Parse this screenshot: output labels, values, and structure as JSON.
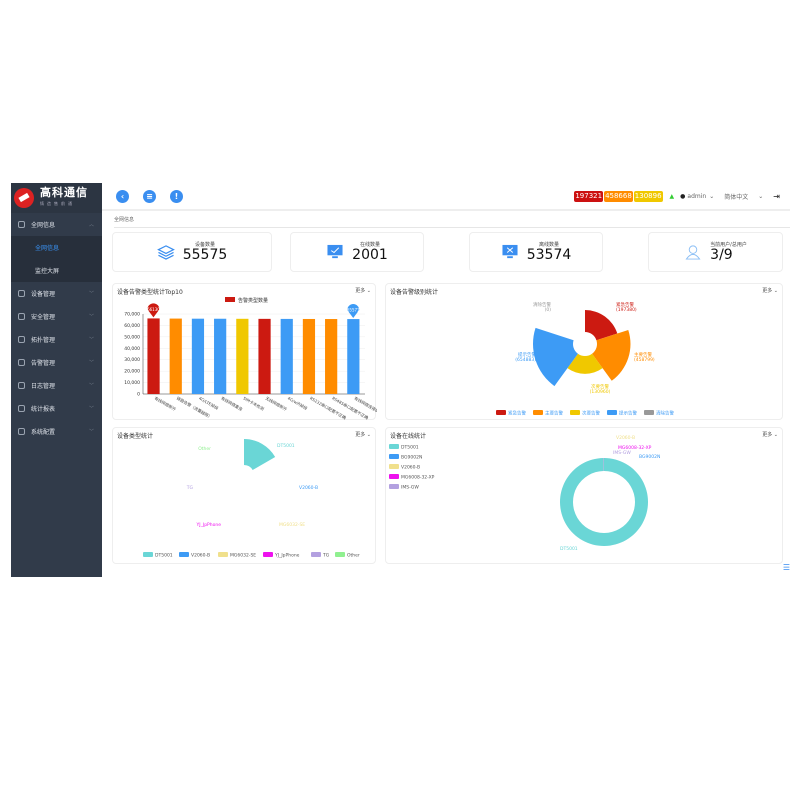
{
  "brand": {
    "name": "高科通信",
    "sub": "铸造售前通"
  },
  "sidebar": {
    "items": [
      {
        "label": "全网信息",
        "expanded": true,
        "children": [
          {
            "label": "全网信息",
            "active": true
          },
          {
            "label": "监控大屏"
          }
        ]
      },
      {
        "label": "设备管理"
      },
      {
        "label": "安全管理"
      },
      {
        "label": "拓扑管理"
      },
      {
        "label": "告警管理"
      },
      {
        "label": "日志管理"
      },
      {
        "label": "统计报表"
      },
      {
        "label": "系统配置"
      }
    ]
  },
  "topbar": {
    "icons": [
      "back-icon",
      "list-icon",
      "alert-icon"
    ],
    "badges": [
      {
        "value": "197321",
        "color": "#cc1111"
      },
      {
        "value": "458668",
        "color": "#ff8c00"
      },
      {
        "value": "130896",
        "color": "#f0c800"
      }
    ],
    "user": "admin",
    "language": "简体中文"
  },
  "breadcrumb": "全网信息",
  "stats": [
    {
      "label": "设备数量",
      "value": "55575",
      "icon": "layers-icon"
    },
    {
      "label": "在线数量",
      "value": "2001",
      "icon": "monitor-check-icon"
    },
    {
      "label": "离线数量",
      "value": "53574",
      "icon": "monitor-x-icon"
    },
    {
      "label": "当前用户/总用户",
      "value": "3/9",
      "icon": "user-icon"
    }
  ],
  "more_label": "更多",
  "chart_data": [
    {
      "type": "bar",
      "title": "设备告警类型统计Top10",
      "legend": [
        "告警类型数量"
      ],
      "ylim": [
        0,
        70000
      ],
      "yticks": [
        "0",
        "10,000",
        "20,000",
        "30,000",
        "40,000",
        "50,000",
        "60,000",
        "70,000"
      ],
      "categories": [
        "有线网络断开",
        "链路告警（流量越限）",
        "4G/LTE掉线",
        "有线网络重连",
        "SIM卡未检测",
        "无线网络断开",
        "4G/wifi掉线",
        "RS232串口配置不正确",
        "RS485串口配置不正确",
        "有线网络连接状态"
      ],
      "values": [
        66130,
        66000,
        65900,
        65850,
        65800,
        65750,
        65700,
        65650,
        65600,
        65571
      ],
      "colors": [
        "#cc1a11",
        "#ff8c00",
        "#3d9bf5",
        "#3d9bf5",
        "#f0c800",
        "#cc1a11",
        "#3d9bf5",
        "#ff8c00",
        "#ff8c00",
        "#3d9bf5"
      ],
      "markers": [
        {
          "label": "66130",
          "index": 0,
          "color": "#cc1a11"
        },
        {
          "label": "65571",
          "index": 9,
          "color": "#3d9bf5"
        }
      ]
    },
    {
      "type": "pie",
      "variant": "rose",
      "title": "设备告警级别统计",
      "series": [
        {
          "name": "紧急告警",
          "value": 197380,
          "color": "#cc1a11"
        },
        {
          "name": "主要告警",
          "value": 458799,
          "color": "#ff8c00"
        },
        {
          "name": "次要告警",
          "value": 130960,
          "color": "#f0c800"
        },
        {
          "name": "提示告警",
          "value": 654883,
          "color": "#3d9bf5"
        },
        {
          "name": "清除告警",
          "value": 0,
          "color": "#999999"
        }
      ]
    },
    {
      "type": "pie",
      "variant": "rose",
      "title": "设备类型统计",
      "series": [
        {
          "name": "DT5001",
          "value": 100,
          "color": "#6ad6d6"
        },
        {
          "name": "V2060-B",
          "value": 0,
          "color": "#3d9bf5"
        },
        {
          "name": "MG6032-SE",
          "value": 0,
          "color": "#f0e08c"
        },
        {
          "name": "YJ_JpPhone",
          "value": 0,
          "color": "#ee11ee"
        },
        {
          "name": "TG",
          "value": 0,
          "color": "#b3a0e0"
        },
        {
          "name": "Other",
          "value": 0,
          "color": "#90f090"
        }
      ]
    },
    {
      "type": "pie",
      "variant": "donut",
      "title": "设备在线统计",
      "series": [
        {
          "name": "DT5001",
          "value": 1997,
          "color": "#6ad6d6"
        },
        {
          "name": "BG9002N",
          "value": 1,
          "color": "#3d9bf5"
        },
        {
          "name": "V2060-B",
          "value": 1,
          "color": "#f0e08c"
        },
        {
          "name": "MG6008-32-XP",
          "value": 1,
          "color": "#ee11ee"
        },
        {
          "name": "IMS-GW",
          "value": 1,
          "color": "#b3a0e0"
        }
      ]
    }
  ]
}
